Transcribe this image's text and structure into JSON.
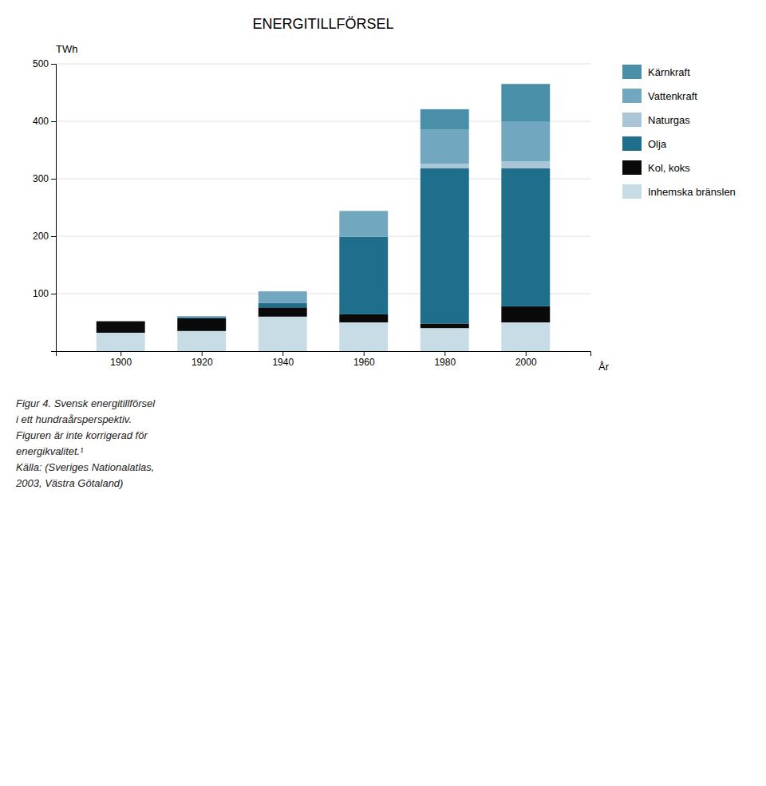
{
  "chart_data": {
    "type": "bar",
    "stacked": true,
    "title": "ENERGITILLFÖRSEL",
    "xlabel": "År",
    "ylabel": "TWh",
    "x": [
      1900,
      1920,
      1940,
      1960,
      1980,
      2000
    ],
    "xlim": [
      1884,
      2016
    ],
    "xticks": [
      1900,
      1920,
      1940,
      1960,
      1980,
      2000
    ],
    "ylim": [
      0,
      500
    ],
    "yticks": [
      100,
      200,
      300,
      400,
      500
    ],
    "grid": true,
    "legend": "right",
    "series": [
      {
        "name": "Inhemska bränslen",
        "color": "#c8dce6",
        "values": [
          32,
          35,
          60,
          50,
          40,
          50
        ]
      },
      {
        "name": "Kol, koks",
        "color": "#0a0a0a",
        "values": [
          20,
          22,
          16,
          14,
          8,
          28
        ]
      },
      {
        "name": "Olja",
        "color": "#1e6e8c",
        "values": [
          0,
          2,
          8,
          135,
          270,
          240
        ]
      },
      {
        "name": "Naturgas",
        "color": "#aac5d5",
        "values": [
          0,
          0,
          0,
          0,
          8,
          12
        ]
      },
      {
        "name": "Vattenkraft",
        "color": "#72a8bf",
        "values": [
          0,
          2,
          20,
          45,
          60,
          70
        ]
      },
      {
        "name": "Kärnkraft",
        "color": "#4a8fa8",
        "values": [
          0,
          0,
          0,
          0,
          35,
          65
        ]
      }
    ],
    "annotations": [
      "Figur 4. Svensk energitillförsel",
      "i ett hundraårsperspektiv.",
      "Figuren är inte korrigerad för",
      "energikvalitet.¹",
      "Källa: (Sveriges Nationalatlas,",
      "2003, Västra Götaland)"
    ]
  }
}
